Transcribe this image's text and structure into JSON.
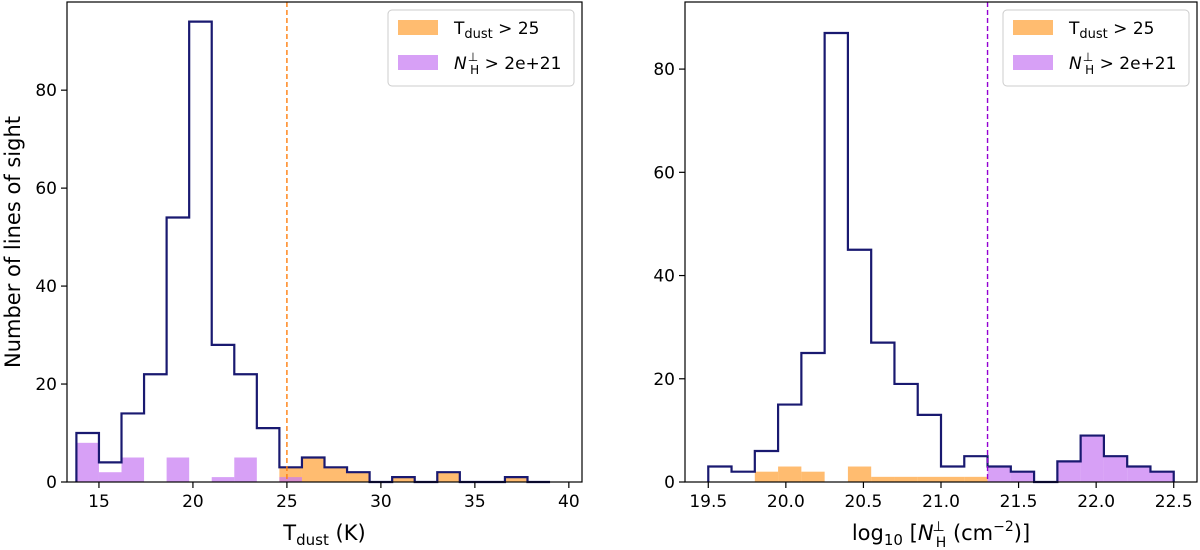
{
  "chart_data": [
    {
      "type": "bar",
      "panel": "left",
      "xlabel": {
        "base": "T",
        "sub": "dust",
        "tail": " (K)"
      },
      "ylabel": "Number of lines of sight",
      "xlim": [
        13.3,
        40.7
      ],
      "ylim": [
        0,
        98
      ],
      "xticks": [
        15,
        20,
        25,
        30,
        35,
        40
      ],
      "yticks": [
        0,
        20,
        40,
        60,
        80
      ],
      "threshold_line": {
        "x": 25,
        "color": "#ff7f0e"
      },
      "bin_edges": [
        13.8,
        15.0,
        16.2,
        17.4,
        18.6,
        19.8,
        21.0,
        22.2,
        23.4,
        24.6,
        25.8,
        27.0,
        28.2,
        29.4,
        30.6,
        31.8,
        33.0,
        34.2,
        35.4,
        36.6,
        37.8,
        39.0
      ],
      "series": [
        {
          "role": "all",
          "style": "step",
          "color": "#191970",
          "values": [
            10,
            4,
            14,
            22,
            54,
            94,
            28,
            22,
            11,
            3,
            5,
            3,
            2,
            0,
            1,
            0,
            2,
            0,
            0,
            1,
            0
          ]
        },
        {
          "role": "hot",
          "style": "filled",
          "color": "#ffa640",
          "values": [
            0,
            0,
            0,
            0,
            0,
            0,
            0,
            0,
            0,
            3,
            5,
            3,
            2,
            0,
            1,
            0,
            2,
            0,
            0,
            1,
            0
          ]
        },
        {
          "role": "dense",
          "style": "filled",
          "color": "#c77cf2",
          "values": [
            8,
            2,
            5,
            0,
            5,
            0,
            1,
            5,
            0,
            1,
            0,
            0,
            0,
            0,
            0,
            0,
            0,
            0,
            0,
            0,
            0
          ]
        }
      ]
    },
    {
      "type": "bar",
      "panel": "right",
      "xlabel": {
        "base": "log",
        "sub": "10",
        "mid": " [",
        "ital": "N",
        "isub": "H",
        "isup": "⊥",
        "unit": " (cm",
        "usup": "−2",
        "tail": ")]"
      },
      "ylabel": "",
      "xlim": [
        19.35,
        22.65
      ],
      "ylim": [
        0,
        93
      ],
      "xticks": [
        19.5,
        20.0,
        20.5,
        21.0,
        21.5,
        22.0,
        22.5
      ],
      "xticklabels": [
        "19.5",
        "20.0",
        "20.5",
        "21.0",
        "21.5",
        "22.0",
        "22.5"
      ],
      "yticks": [
        0,
        20,
        40,
        60,
        80
      ],
      "threshold_line": {
        "x": 21.3,
        "color": "#9400d3"
      },
      "bin_edges": [
        19.5,
        19.65,
        19.8,
        19.95,
        20.1,
        20.25,
        20.4,
        20.55,
        20.7,
        20.85,
        21.0,
        21.15,
        21.3,
        21.45,
        21.6,
        21.75,
        21.9,
        22.05,
        22.2,
        22.35,
        22.5
      ],
      "series": [
        {
          "role": "all",
          "style": "step",
          "color": "#191970",
          "values": [
            3,
            2,
            6,
            15,
            25,
            87,
            45,
            27,
            19,
            13,
            3,
            5,
            3,
            2,
            0,
            4,
            9,
            5,
            3,
            2
          ]
        },
        {
          "role": "hot",
          "style": "filled",
          "color": "#ffa640",
          "values": [
            0,
            0,
            2,
            3,
            2,
            0,
            3,
            1,
            1,
            1,
            1,
            1,
            0,
            0,
            0,
            0,
            0,
            0,
            0,
            0
          ]
        },
        {
          "role": "dense",
          "style": "filled",
          "color": "#c77cf2",
          "values": [
            0,
            0,
            0,
            0,
            0,
            0,
            0,
            0,
            0,
            0,
            0,
            0,
            3,
            2,
            0,
            4,
            9,
            5,
            3,
            2
          ]
        }
      ]
    }
  ],
  "legend": {
    "placement": "top-right",
    "hot": {
      "color": "#ffa640",
      "base": "T",
      "sub": "dust",
      "rest": " > 25"
    },
    "dense": {
      "color": "#c77cf2",
      "base": "N",
      "sub": "H",
      "sup": "⊥",
      "rest": " > 2e+21"
    }
  }
}
